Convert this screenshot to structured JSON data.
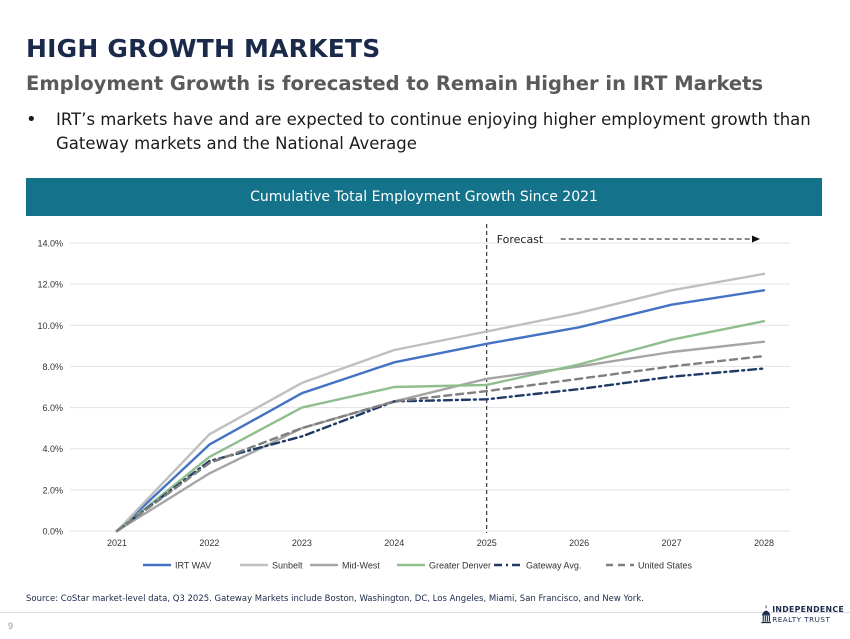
{
  "header": {
    "title": "HIGH GROWTH MARKETS",
    "subtitle": "Employment Growth is forecasted to Remain Higher in IRT Markets",
    "bullet_symbol": "•",
    "bullet": "IRT’s markets have and are expected to continue enjoying higher employment growth than Gateway markets and the National Average"
  },
  "chart_data": {
    "type": "line",
    "title": "Cumulative Total Employment Growth Since 2021",
    "x": [
      "2021",
      "2022",
      "2023",
      "2024",
      "2025",
      "2026",
      "2027",
      "2028"
    ],
    "ylim": [
      0,
      14
    ],
    "yticks": [
      "0.0%",
      "2.0%",
      "4.0%",
      "6.0%",
      "8.0%",
      "10.0%",
      "12.0%",
      "14.0%"
    ],
    "grid": true,
    "legend_position": "bottom",
    "forecast_label": "Forecast",
    "forecast_start": "2025",
    "series": [
      {
        "name": "IRT WAV",
        "color": "#4472c4",
        "style": "solid",
        "values": [
          0.0,
          4.2,
          6.7,
          8.2,
          9.1,
          9.9,
          11.0,
          11.7
        ]
      },
      {
        "name": "Sunbelt",
        "color": "#bfbfbf",
        "style": "solid",
        "values": [
          0.0,
          4.7,
          7.2,
          8.8,
          9.7,
          10.6,
          11.7,
          12.5
        ]
      },
      {
        "name": "Mid-West",
        "color": "#a5a5a5",
        "style": "solid",
        "values": [
          0.0,
          2.8,
          5.0,
          6.3,
          7.4,
          8.0,
          8.7,
          9.2
        ]
      },
      {
        "name": "Greater Denver",
        "color": "#8fbe8f",
        "style": "solid",
        "values": [
          0.0,
          3.6,
          6.0,
          7.0,
          7.1,
          8.1,
          9.3,
          10.2
        ]
      },
      {
        "name": "Gateway Avg.",
        "color": "#1f3a66",
        "style": "dashdot",
        "values": [
          0.0,
          3.4,
          4.6,
          6.3,
          6.4,
          6.9,
          7.5,
          7.9
        ]
      },
      {
        "name": "United States",
        "color": "#7f7f7f",
        "style": "dashed",
        "values": [
          0.0,
          3.3,
          5.0,
          6.3,
          6.8,
          7.4,
          8.0,
          8.5
        ]
      }
    ]
  },
  "footer": {
    "source": "Source: CoStar market-level data, Q3 2025. Gateway Markets include Boston, Washington, DC, Los Angeles, Miami, San Francisco, and New York.",
    "page_number": "9",
    "logo_line1": "INDEPENDENCE",
    "logo_line2": "REALTY TRUST"
  }
}
